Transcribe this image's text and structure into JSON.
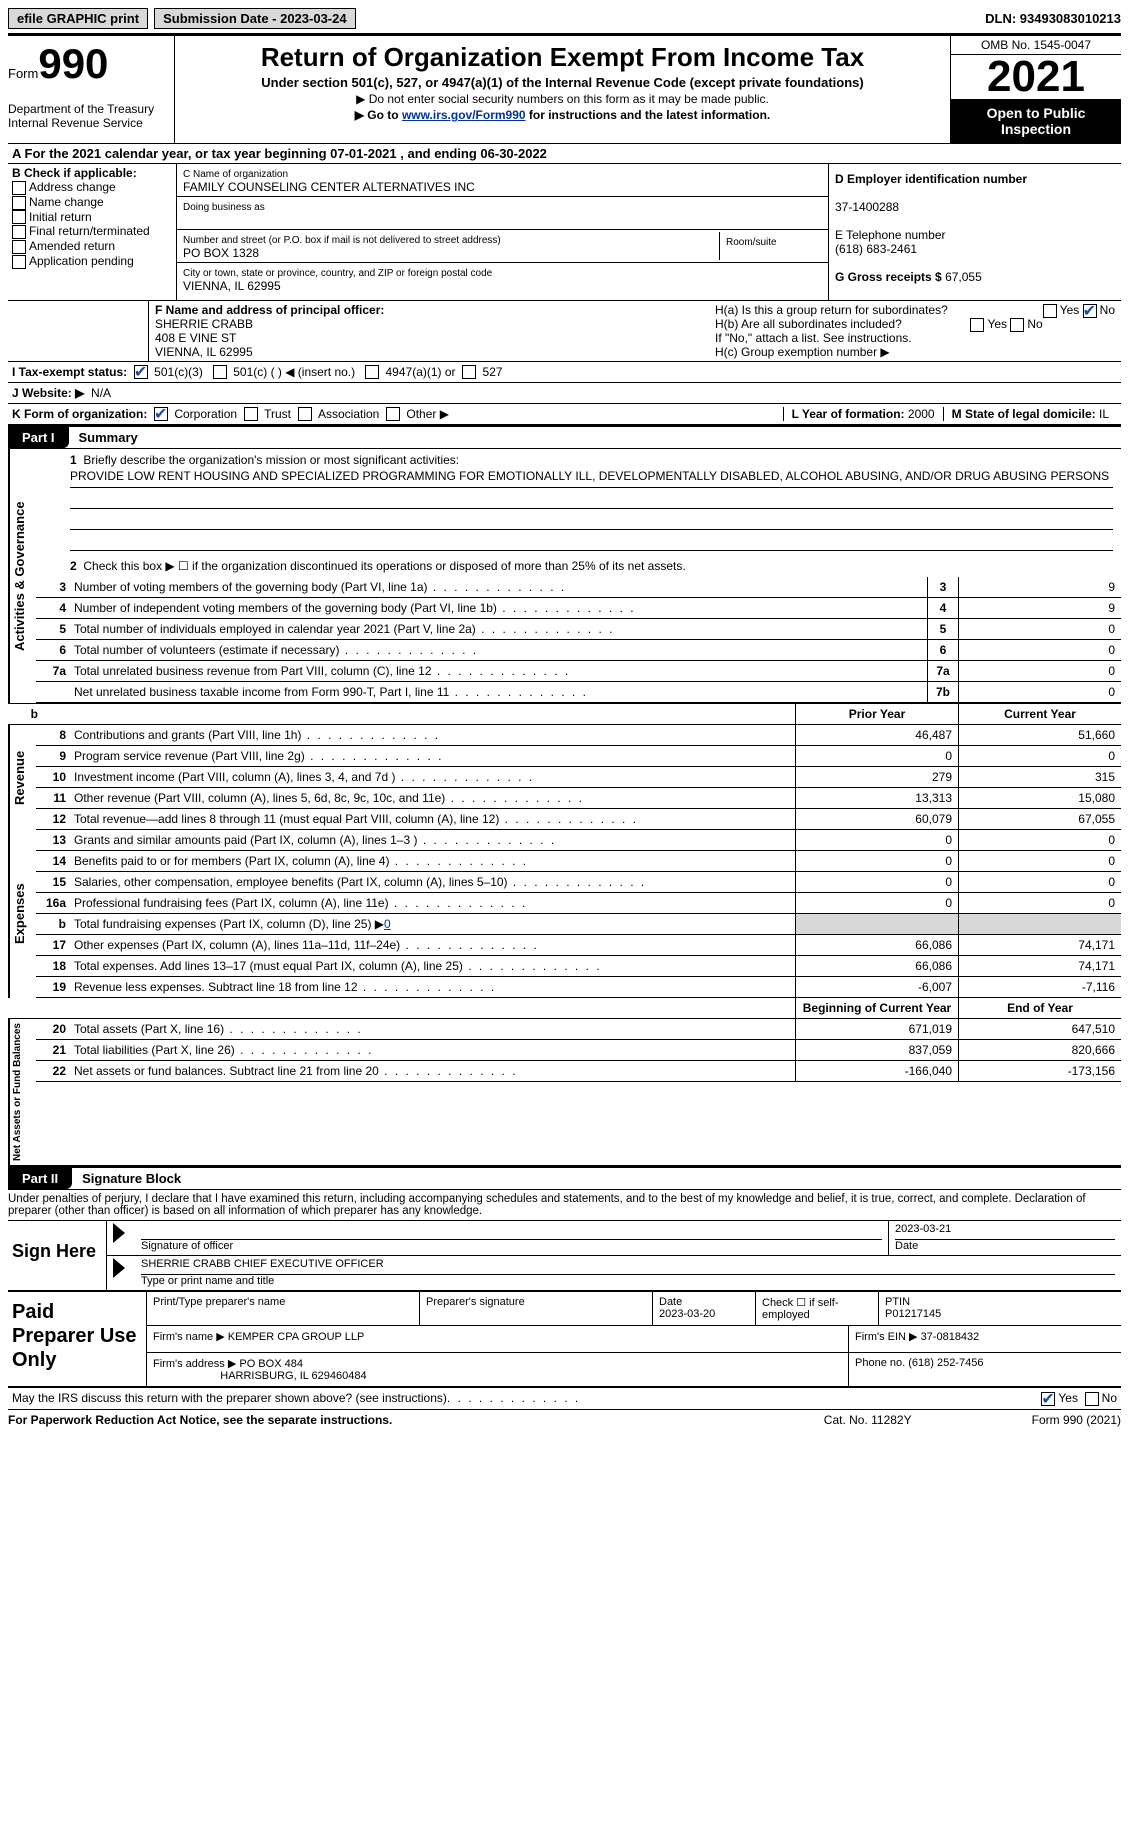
{
  "top": {
    "efile": "efile GRAPHIC print",
    "submission_label": "Submission Date - 2023-03-24",
    "dln_label": "DLN: 93493083010213"
  },
  "header": {
    "form_word": "Form",
    "form_num": "990",
    "dept": "Department of the Treasury Internal Revenue Service",
    "title": "Return of Organization Exempt From Income Tax",
    "sub": "Under section 501(c), 527, or 4947(a)(1) of the Internal Revenue Code (except private foundations)",
    "sub2a": "▶ Do not enter social security numbers on this form as it may be made public.",
    "sub2b_pre": "▶ Go to ",
    "sub2b_link": "www.irs.gov/Form990",
    "sub2b_post": " for instructions and the latest information.",
    "omb": "OMB No. 1545-0047",
    "year": "2021",
    "open": "Open to Public Inspection"
  },
  "row_a": "A For the 2021 calendar year, or tax year beginning 07-01-2021    , and ending 06-30-2022",
  "b": {
    "label": "B Check if applicable:",
    "items": [
      "Address change",
      "Name change",
      "Initial return",
      "Final return/terminated",
      "Amended return",
      "Application pending"
    ]
  },
  "c": {
    "name_lbl": "C Name of organization",
    "name": "FAMILY COUNSELING CENTER ALTERNATIVES INC",
    "dba_lbl": "Doing business as",
    "dba": "",
    "street_lbl": "Number and street (or P.O. box if mail is not delivered to street address)",
    "room_lbl": "Room/suite",
    "street": "PO BOX 1328",
    "city_lbl": "City or town, state or province, country, and ZIP or foreign postal code",
    "city": "VIENNA, IL  62995"
  },
  "d": {
    "ein_lbl": "D Employer identification number",
    "ein": "37-1400288",
    "tel_lbl": "E Telephone number",
    "tel": "(618) 683-2461",
    "gross_lbl": "G Gross receipts $",
    "gross": "67,055"
  },
  "f": {
    "lbl": "F Name and address of principal officer:",
    "name": "SHERRIE CRABB",
    "addr1": "408 E VINE ST",
    "addr2": "VIENNA, IL  62995"
  },
  "h": {
    "a": "H(a)  Is this a group return for subordinates?",
    "b": "H(b)  Are all subordinates included?",
    "b_note": "If \"No,\" attach a list. See instructions.",
    "c": "H(c)  Group exemption number ▶"
  },
  "i": {
    "lbl": "I  Tax-exempt status:",
    "opts": [
      "501(c)(3)",
      "501(c) (  ) ◀ (insert no.)",
      "4947(a)(1) or",
      "527"
    ]
  },
  "j": {
    "lbl": "J  Website: ▶",
    "val": "N/A"
  },
  "k": {
    "lbl": "K Form of organization:",
    "opts": [
      "Corporation",
      "Trust",
      "Association",
      "Other ▶"
    ],
    "l_lbl": "L Year of formation:",
    "l_val": "2000",
    "m_lbl": "M State of legal domicile:",
    "m_val": "IL"
  },
  "part1": {
    "tab": "Part I",
    "title": "Summary"
  },
  "mission": {
    "q": "Briefly describe the organization's mission or most significant activities:",
    "text": "PROVIDE LOW RENT HOUSING AND SPECIALIZED PROGRAMMING FOR EMOTIONALLY ILL, DEVELOPMENTALLY DISABLED, ALCOHOL ABUSING, AND/OR DRUG ABUSING PERSONS"
  },
  "line2": "Check this box ▶ ☐ if the organization discontinued its operations or disposed of more than 25% of its net assets.",
  "gov_lines": [
    {
      "n": "3",
      "d": "Number of voting members of the governing body (Part VI, line 1a)",
      "box": "3",
      "v": "9"
    },
    {
      "n": "4",
      "d": "Number of independent voting members of the governing body (Part VI, line 1b)",
      "box": "4",
      "v": "9"
    },
    {
      "n": "5",
      "d": "Total number of individuals employed in calendar year 2021 (Part V, line 2a)",
      "box": "5",
      "v": "0"
    },
    {
      "n": "6",
      "d": "Total number of volunteers (estimate if necessary)",
      "box": "6",
      "v": "0"
    },
    {
      "n": "7a",
      "d": "Total unrelated business revenue from Part VIII, column (C), line 12",
      "box": "7a",
      "v": "0"
    },
    {
      "n": "",
      "d": "Net unrelated business taxable income from Form 990-T, Part I, line 11",
      "box": "7b",
      "v": "0"
    }
  ],
  "cols": {
    "prior": "Prior Year",
    "current": "Current Year",
    "boy": "Beginning of Current Year",
    "eoy": "End of Year"
  },
  "revenue": [
    {
      "n": "8",
      "d": "Contributions and grants (Part VIII, line 1h)",
      "p": "46,487",
      "c": "51,660"
    },
    {
      "n": "9",
      "d": "Program service revenue (Part VIII, line 2g)",
      "p": "0",
      "c": "0"
    },
    {
      "n": "10",
      "d": "Investment income (Part VIII, column (A), lines 3, 4, and 7d )",
      "p": "279",
      "c": "315"
    },
    {
      "n": "11",
      "d": "Other revenue (Part VIII, column (A), lines 5, 6d, 8c, 9c, 10c, and 11e)",
      "p": "13,313",
      "c": "15,080"
    },
    {
      "n": "12",
      "d": "Total revenue—add lines 8 through 11 (must equal Part VIII, column (A), line 12)",
      "p": "60,079",
      "c": "67,055"
    }
  ],
  "expenses": [
    {
      "n": "13",
      "d": "Grants and similar amounts paid (Part IX, column (A), lines 1–3 )",
      "p": "0",
      "c": "0"
    },
    {
      "n": "14",
      "d": "Benefits paid to or for members (Part IX, column (A), line 4)",
      "p": "0",
      "c": "0"
    },
    {
      "n": "15",
      "d": "Salaries, other compensation, employee benefits (Part IX, column (A), lines 5–10)",
      "p": "0",
      "c": "0"
    },
    {
      "n": "16a",
      "d": "Professional fundraising fees (Part IX, column (A), line 11e)",
      "p": "0",
      "c": "0"
    }
  ],
  "line16b": {
    "n": "b",
    "d_pre": "Total fundraising expenses (Part IX, column (D), line 25) ▶",
    "d_val": "0"
  },
  "expenses2": [
    {
      "n": "17",
      "d": "Other expenses (Part IX, column (A), lines 11a–11d, 11f–24e)",
      "p": "66,086",
      "c": "74,171"
    },
    {
      "n": "18",
      "d": "Total expenses. Add lines 13–17 (must equal Part IX, column (A), line 25)",
      "p": "66,086",
      "c": "74,171"
    },
    {
      "n": "19",
      "d": "Revenue less expenses. Subtract line 18 from line 12",
      "p": "-6,007",
      "c": "-7,116"
    }
  ],
  "netassets": [
    {
      "n": "20",
      "d": "Total assets (Part X, line 16)",
      "p": "671,019",
      "c": "647,510"
    },
    {
      "n": "21",
      "d": "Total liabilities (Part X, line 26)",
      "p": "837,059",
      "c": "820,666"
    },
    {
      "n": "22",
      "d": "Net assets or fund balances. Subtract line 21 from line 20",
      "p": "-166,040",
      "c": "-173,156"
    }
  ],
  "vert": {
    "gov": "Activities & Governance",
    "rev": "Revenue",
    "exp": "Expenses",
    "net": "Net Assets or Fund Balances"
  },
  "part2": {
    "tab": "Part II",
    "title": "Signature Block"
  },
  "penalty": "Under penalties of perjury, I declare that I have examined this return, including accompanying schedules and statements, and to the best of my knowledge and belief, it is true, correct, and complete. Declaration of preparer (other than officer) is based on all information of which preparer has any knowledge.",
  "sign": {
    "here": "Sign Here",
    "sig_lbl": "Signature of officer",
    "date": "2023-03-21",
    "date_lbl": "Date",
    "name": "SHERRIE CRABB CHIEF EXECUTIVE OFFICER",
    "name_lbl": "Type or print name and title"
  },
  "paid": {
    "title": "Paid Preparer Use Only",
    "print_lbl": "Print/Type preparer's name",
    "sig_lbl": "Preparer's signature",
    "date_lbl": "Date",
    "date": "2023-03-20",
    "check_lbl": "Check ☐ if self-employed",
    "ptin_lbl": "PTIN",
    "ptin": "P01217145",
    "firm_name_lbl": "Firm's name   ▶",
    "firm_name": "KEMPER CPA GROUP LLP",
    "firm_ein_lbl": "Firm's EIN ▶",
    "firm_ein": "37-0818432",
    "firm_addr_lbl": "Firm's address ▶",
    "firm_addr": "PO BOX 484",
    "firm_addr2": "HARRISBURG, IL  629460484",
    "phone_lbl": "Phone no.",
    "phone": "(618) 252-7456"
  },
  "may_discuss": "May the IRS discuss this return with the preparer shown above? (see instructions)",
  "footer": {
    "left": "For Paperwork Reduction Act Notice, see the separate instructions.",
    "cat": "Cat. No. 11282Y",
    "right": "Form 990 (2021)"
  },
  "yn": {
    "yes": "Yes",
    "no": "No"
  }
}
